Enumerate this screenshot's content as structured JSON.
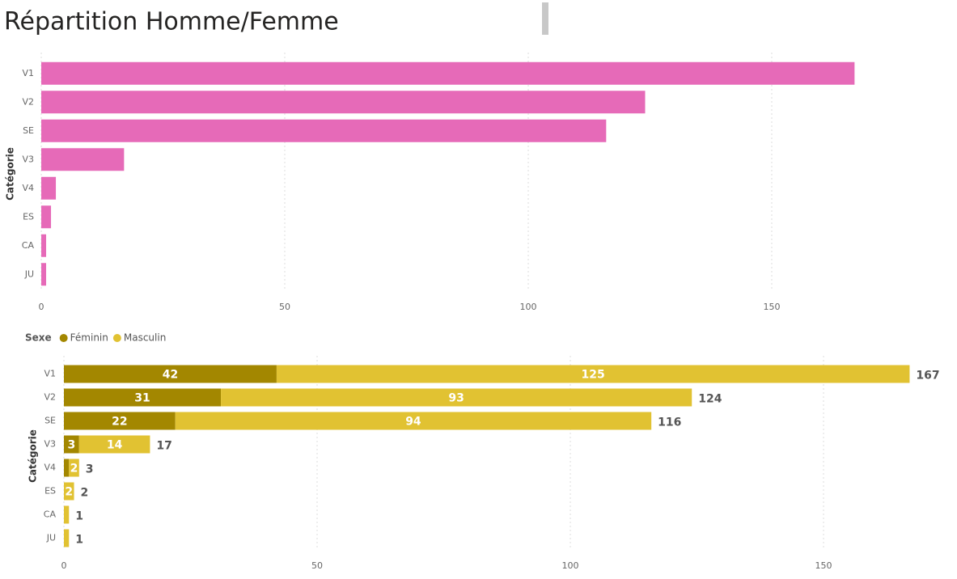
{
  "title": "Répartition Homme/Femme",
  "chart_data": [
    {
      "type": "barh",
      "y_label": "Catégorie",
      "categories": [
        "V1",
        "V2",
        "SE",
        "V3",
        "V4",
        "ES",
        "CA",
        "JU"
      ],
      "values": [
        167,
        124,
        116,
        17,
        3,
        2,
        1,
        1
      ],
      "color": "#e66ab8",
      "xlim": [
        0,
        187
      ],
      "xticks": [
        0,
        50,
        100,
        150
      ],
      "grid": true
    },
    {
      "type": "stacked_barh",
      "y_label": "Catégorie",
      "legend_title": "Sexe",
      "legend": "top-left",
      "categories": [
        "V1",
        "V2",
        "SE",
        "V3",
        "V4",
        "ES",
        "CA",
        "JU"
      ],
      "series": [
        {
          "name": "Féminin",
          "color": "#a38700",
          "values": [
            42,
            31,
            22,
            3,
            1,
            null,
            null,
            null
          ]
        },
        {
          "name": "Masculin",
          "color": "#e1c232",
          "values": [
            125,
            93,
            94,
            14,
            2,
            2,
            1,
            1
          ]
        }
      ],
      "totals": [
        167,
        124,
        116,
        17,
        3,
        2,
        1,
        1
      ],
      "xlim": [
        0,
        175
      ],
      "xticks": [
        0,
        50,
        100,
        150
      ],
      "grid": true
    }
  ]
}
